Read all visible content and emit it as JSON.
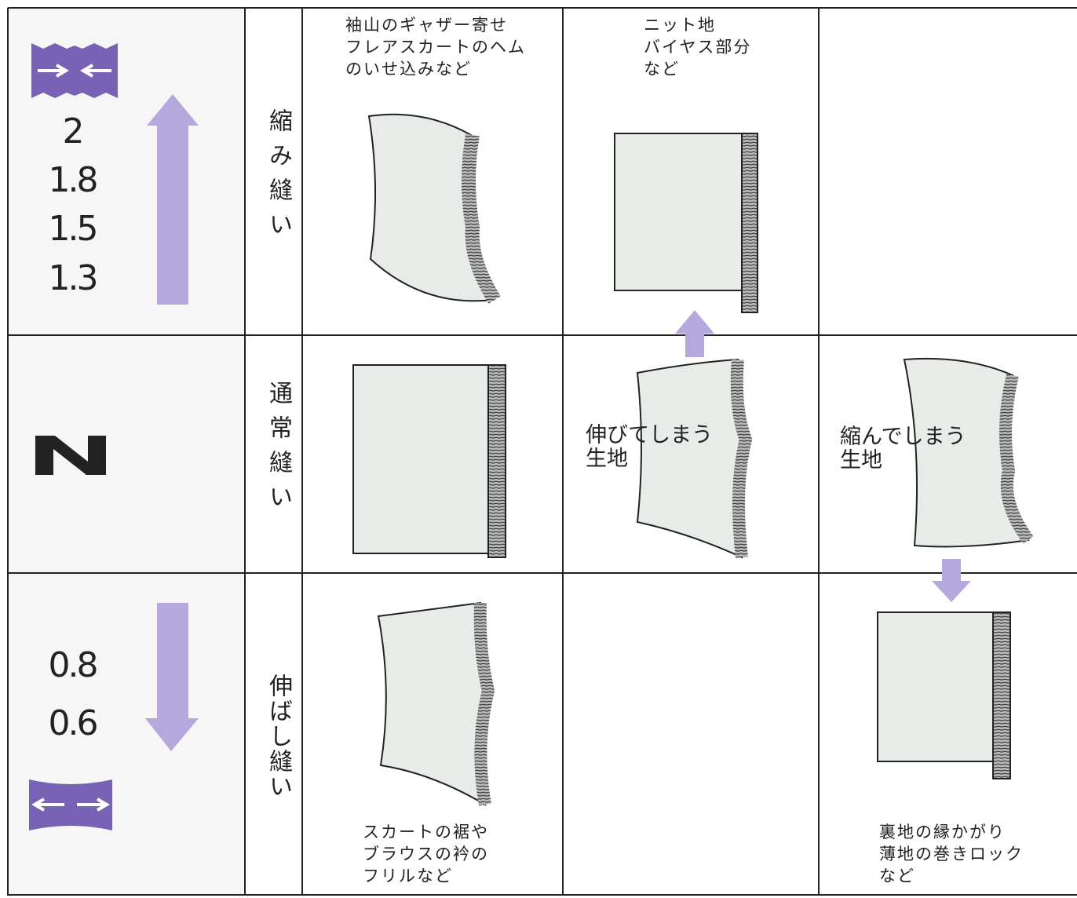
{
  "row_shrink": {
    "values": [
      "2",
      "1.8",
      "1.5",
      "1.3"
    ],
    "label": "縮み縫い",
    "example_1": [
      "袖山のギャザー寄せ",
      "フレアスカートのヘム",
      "のいせ込みなど"
    ],
    "example_2": [
      "ニット地",
      "バイヤス部分",
      "など"
    ]
  },
  "row_normal": {
    "label": "通常縫い",
    "stretchy_fabric": [
      "伸びてしまう",
      "生地"
    ],
    "shrinking_fabric": [
      "縮んでしまう",
      "生地"
    ]
  },
  "row_stretch": {
    "values": [
      "0.8",
      "0.6"
    ],
    "label": "伸ばし縫い",
    "example_1": [
      "スカートの裾や",
      "ブラウスの衿の",
      "フリルなど"
    ],
    "example_3": [
      "裏地の縁かがり",
      "薄地の巻きロック",
      "など"
    ]
  }
}
